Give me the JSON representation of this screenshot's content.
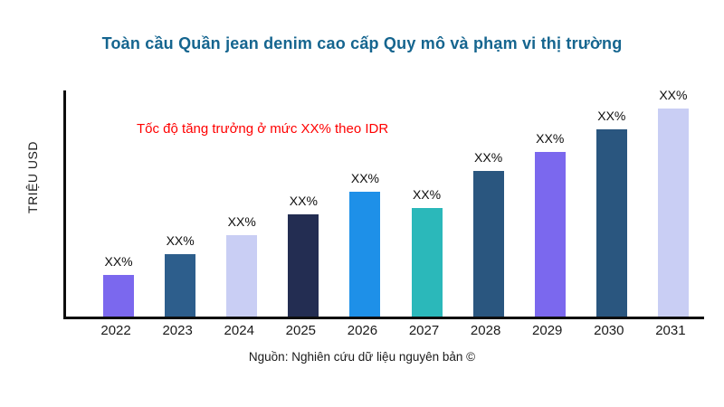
{
  "chart_data": {
    "type": "bar",
    "title": "Toàn cầu Quần jean denim cao cấp Quy mô và phạm vi thị trường",
    "title_color": "#15658F",
    "ylabel": "TRIỆU USD",
    "xlabel": "",
    "annotation": "Tốc độ tăng trưởng ở mức XX% theo IDR",
    "annotation_color": "#FF0000",
    "source": "Nguồn: Nghiên cứu dữ liệu nguyên bản ©",
    "categories": [
      "2022",
      "2023",
      "2024",
      "2025",
      "2026",
      "2027",
      "2028",
      "2029",
      "2030",
      "2031"
    ],
    "values": [
      20,
      30,
      39,
      49,
      60,
      52,
      70,
      79,
      90,
      100
    ],
    "bar_labels": [
      "XX%",
      "XX%",
      "XX%",
      "XX%",
      "XX%",
      "XX%",
      "XX%",
      "XX%",
      "XX%",
      "XX%"
    ],
    "bar_colors": [
      "#7B68EE",
      "#2D5E8C",
      "#C9CEF4",
      "#232D52",
      "#1E90E8",
      "#2BB8BA",
      "#2A567F",
      "#7B68EE",
      "#2A567F",
      "#C9CEF4"
    ],
    "ylim": [
      0,
      100
    ],
    "grid": false,
    "legend": null,
    "axis_color": "#0D0D0D"
  }
}
